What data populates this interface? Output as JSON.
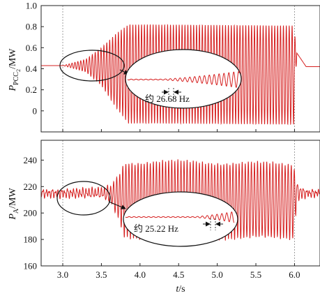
{
  "chart_data": [
    {
      "type": "line",
      "ylabel": {
        "symbol": "P",
        "subscript": "PCC",
        "sub2": "2",
        "unit": "/MW"
      },
      "ylim": [
        -0.2,
        1.0
      ],
      "yticks": [
        0,
        0.2,
        0.4,
        0.6,
        0.8,
        1.0
      ],
      "ytick_labels": [
        "0",
        "0.2",
        "0.4",
        "0.6",
        "0.8",
        "1.0"
      ],
      "event_lines_s": [
        3.0,
        6.0
      ],
      "series": [
        {
          "color": "#d62020",
          "profile": [
            {
              "x": 2.72,
              "baseline": 0.43,
              "amplitude": 0.0
            },
            {
              "x": 3.0,
              "baseline": 0.43,
              "amplitude": 0.0
            },
            {
              "x": 3.3,
              "baseline": 0.43,
              "amplitude": 0.06
            },
            {
              "x": 3.5,
              "baseline": 0.42,
              "amplitude": 0.18
            },
            {
              "x": 3.7,
              "baseline": 0.38,
              "amplitude": 0.36
            },
            {
              "x": 3.85,
              "baseline": 0.35,
              "amplitude": 0.47
            },
            {
              "x": 4.2,
              "baseline": 0.35,
              "amplitude": 0.47
            },
            {
              "x": 5.99,
              "baseline": 0.34,
              "amplitude": 0.47
            },
            {
              "x": 6.03,
              "baseline": 0.55,
              "amplitude": 0.0
            },
            {
              "x": 6.15,
              "baseline": 0.42,
              "amplitude": 0.0
            },
            {
              "x": 6.33,
              "baseline": 0.42,
              "amplitude": 0.0
            }
          ]
        }
      ],
      "annotation": {
        "text": "约 26.68 Hz"
      }
    },
    {
      "type": "line",
      "ylabel": {
        "symbol": "P",
        "subscript": "A",
        "unit": "/MW"
      },
      "xlabel": {
        "symbol": "t",
        "unit": "/s"
      },
      "xlim": [
        2.72,
        6.33
      ],
      "xticks": [
        3.0,
        3.5,
        4.0,
        4.5,
        5.0,
        5.5,
        6.0
      ],
      "xtick_labels": [
        "3.0",
        "3.5",
        "4.0",
        "4.5",
        "5.0",
        "5.5",
        "6.0"
      ],
      "ylim": [
        160,
        255
      ],
      "yticks": [
        160,
        180,
        200,
        220,
        240
      ],
      "ytick_labels": [
        "160",
        "180",
        "200",
        "220",
        "240"
      ],
      "event_lines_s": [
        3.0,
        6.0
      ],
      "series": [
        {
          "color": "#d62020",
          "profile": [
            {
              "x": 2.72,
              "baseline": 215,
              "amplitude": 2
            },
            {
              "x": 3.5,
              "baseline": 215,
              "amplitude": 3
            },
            {
              "x": 3.62,
              "baseline": 214,
              "amplitude": 6
            },
            {
              "x": 3.72,
              "baseline": 212,
              "amplitude": 16
            },
            {
              "x": 3.8,
              "baseline": 210,
              "amplitude": 28
            },
            {
              "x": 4.2,
              "baseline": 210,
              "amplitude": 29
            },
            {
              "x": 5.99,
              "baseline": 209,
              "amplitude": 28
            },
            {
              "x": 6.03,
              "baseline": 216,
              "amplitude": 6
            },
            {
              "x": 6.15,
              "baseline": 215,
              "amplitude": 2
            },
            {
              "x": 6.33,
              "baseline": 215,
              "amplitude": 2
            }
          ]
        }
      ],
      "annotation": {
        "text": "约 25.22 Hz"
      }
    }
  ]
}
